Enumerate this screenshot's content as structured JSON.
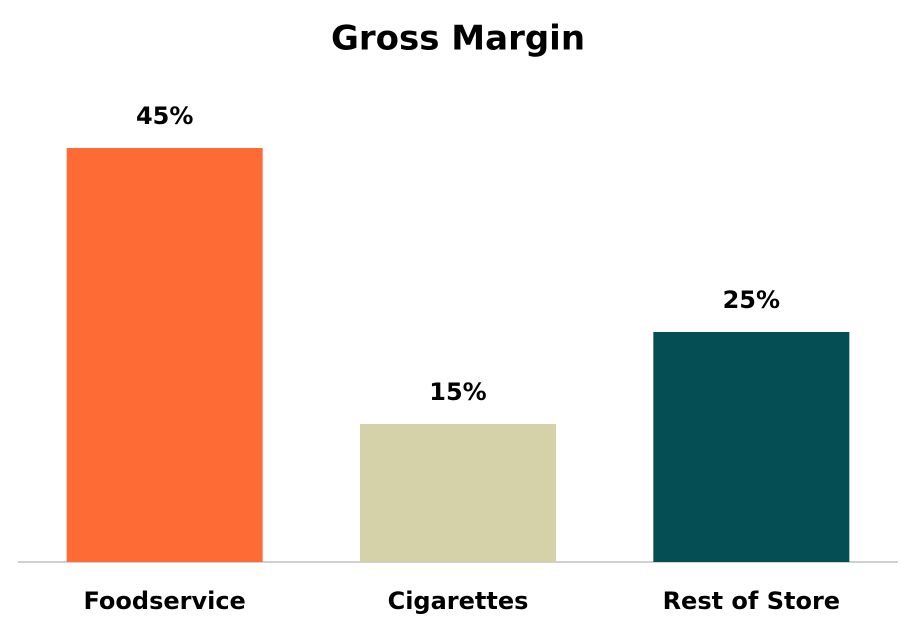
{
  "chart_data": {
    "type": "bar",
    "title": "Gross Margin",
    "categories": [
      "Foodservice",
      "Cigarettes",
      "Rest of Store"
    ],
    "values": [
      45,
      15,
      25
    ],
    "value_labels": [
      "45%",
      "15%",
      "25%"
    ],
    "colors": [
      "#ff6b35",
      "#d5d2a9",
      "#044e54"
    ]
  }
}
